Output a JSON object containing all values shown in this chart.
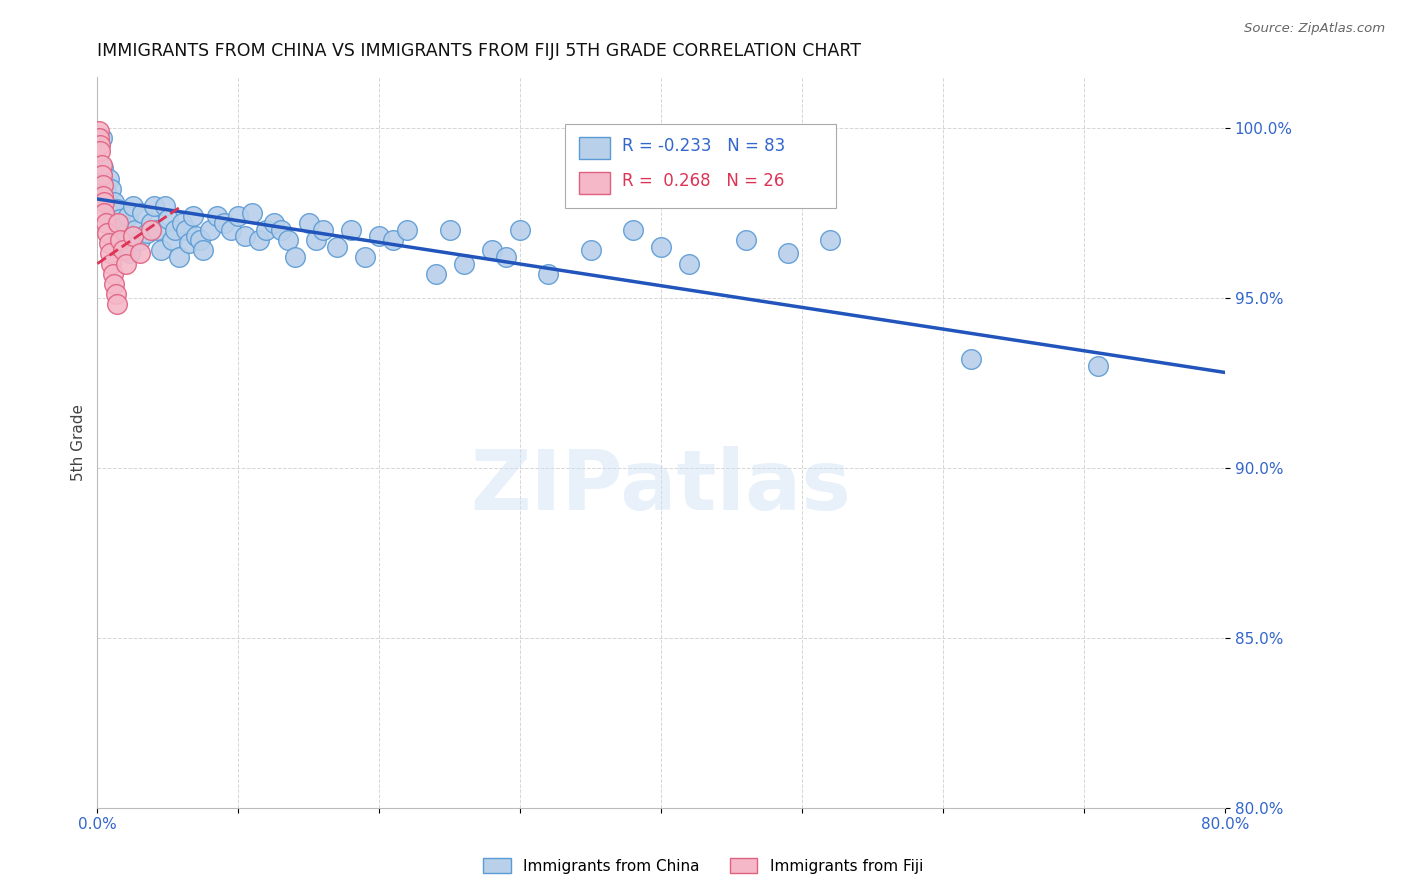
{
  "title": "IMMIGRANTS FROM CHINA VS IMMIGRANTS FROM FIJI 5TH GRADE CORRELATION CHART",
  "source": "Source: ZipAtlas.com",
  "ylabel": "5th Grade",
  "x_min": 0.0,
  "x_max": 0.8,
  "y_min": 0.8,
  "y_max": 1.015,
  "x_ticks": [
    0.0,
    0.1,
    0.2,
    0.3,
    0.4,
    0.5,
    0.6,
    0.7,
    0.8
  ],
  "x_tick_labels": [
    "0.0%",
    "",
    "",
    "",
    "",
    "",
    "",
    "",
    "80.0%"
  ],
  "y_ticks": [
    0.8,
    0.85,
    0.9,
    0.95,
    1.0
  ],
  "y_tick_labels": [
    "80.0%",
    "85.0%",
    "90.0%",
    "95.0%",
    "100.0%"
  ],
  "blue_R": "-0.233",
  "blue_N": "83",
  "pink_R": "0.268",
  "pink_N": "26",
  "blue_color": "#b8d0ea",
  "blue_edge": "#5b9bd5",
  "pink_color": "#f4b8c8",
  "pink_edge": "#e06080",
  "blue_line_color": "#2255bb",
  "pink_line_color": "#dd3355",
  "watermark": "ZIPatlas",
  "blue_scatter_x": [
    0.003,
    0.004,
    0.005,
    0.006,
    0.007,
    0.008,
    0.009,
    0.01,
    0.01,
    0.011,
    0.012,
    0.012,
    0.013,
    0.014,
    0.015,
    0.015,
    0.016,
    0.017,
    0.018,
    0.018,
    0.019,
    0.02,
    0.022,
    0.023,
    0.025,
    0.027,
    0.03,
    0.032,
    0.035,
    0.038,
    0.04,
    0.042,
    0.045,
    0.048,
    0.05,
    0.053,
    0.055,
    0.058,
    0.06,
    0.063,
    0.065,
    0.068,
    0.07,
    0.073,
    0.075,
    0.08,
    0.085,
    0.09,
    0.095,
    0.1,
    0.105,
    0.11,
    0.115,
    0.12,
    0.125,
    0.13,
    0.135,
    0.14,
    0.15,
    0.155,
    0.16,
    0.17,
    0.18,
    0.19,
    0.2,
    0.21,
    0.22,
    0.24,
    0.25,
    0.26,
    0.28,
    0.3,
    0.32,
    0.35,
    0.38,
    0.42,
    0.49,
    0.52,
    0.62,
    0.71,
    0.4,
    0.46,
    0.29
  ],
  "blue_scatter_y": [
    0.997,
    0.988,
    0.984,
    0.981,
    0.979,
    0.985,
    0.977,
    0.976,
    0.982,
    0.974,
    0.975,
    0.978,
    0.971,
    0.976,
    0.972,
    0.968,
    0.973,
    0.97,
    0.967,
    0.971,
    0.965,
    0.969,
    0.974,
    0.963,
    0.977,
    0.97,
    0.967,
    0.975,
    0.969,
    0.972,
    0.977,
    0.97,
    0.964,
    0.977,
    0.973,
    0.967,
    0.97,
    0.962,
    0.972,
    0.97,
    0.966,
    0.974,
    0.968,
    0.967,
    0.964,
    0.97,
    0.974,
    0.972,
    0.97,
    0.974,
    0.968,
    0.975,
    0.967,
    0.97,
    0.972,
    0.97,
    0.967,
    0.962,
    0.972,
    0.967,
    0.97,
    0.965,
    0.97,
    0.962,
    0.968,
    0.967,
    0.97,
    0.957,
    0.97,
    0.96,
    0.964,
    0.97,
    0.957,
    0.964,
    0.97,
    0.96,
    0.963,
    0.967,
    0.932,
    0.93,
    0.965,
    0.967,
    0.962
  ],
  "pink_scatter_x": [
    0.001,
    0.001,
    0.002,
    0.002,
    0.003,
    0.003,
    0.004,
    0.004,
    0.005,
    0.005,
    0.006,
    0.007,
    0.008,
    0.009,
    0.01,
    0.011,
    0.012,
    0.013,
    0.014,
    0.015,
    0.016,
    0.018,
    0.02,
    0.025,
    0.03,
    0.038
  ],
  "pink_scatter_y": [
    0.999,
    0.997,
    0.995,
    0.993,
    0.989,
    0.986,
    0.983,
    0.98,
    0.978,
    0.975,
    0.972,
    0.969,
    0.966,
    0.963,
    0.96,
    0.957,
    0.954,
    0.951,
    0.948,
    0.972,
    0.967,
    0.964,
    0.96,
    0.968,
    0.963,
    0.97
  ],
  "blue_trend_x": [
    0.0,
    0.8
  ],
  "blue_trend_y": [
    0.979,
    0.928
  ],
  "pink_trend_x": [
    0.0,
    0.06
  ],
  "pink_trend_y": [
    0.96,
    0.977
  ]
}
